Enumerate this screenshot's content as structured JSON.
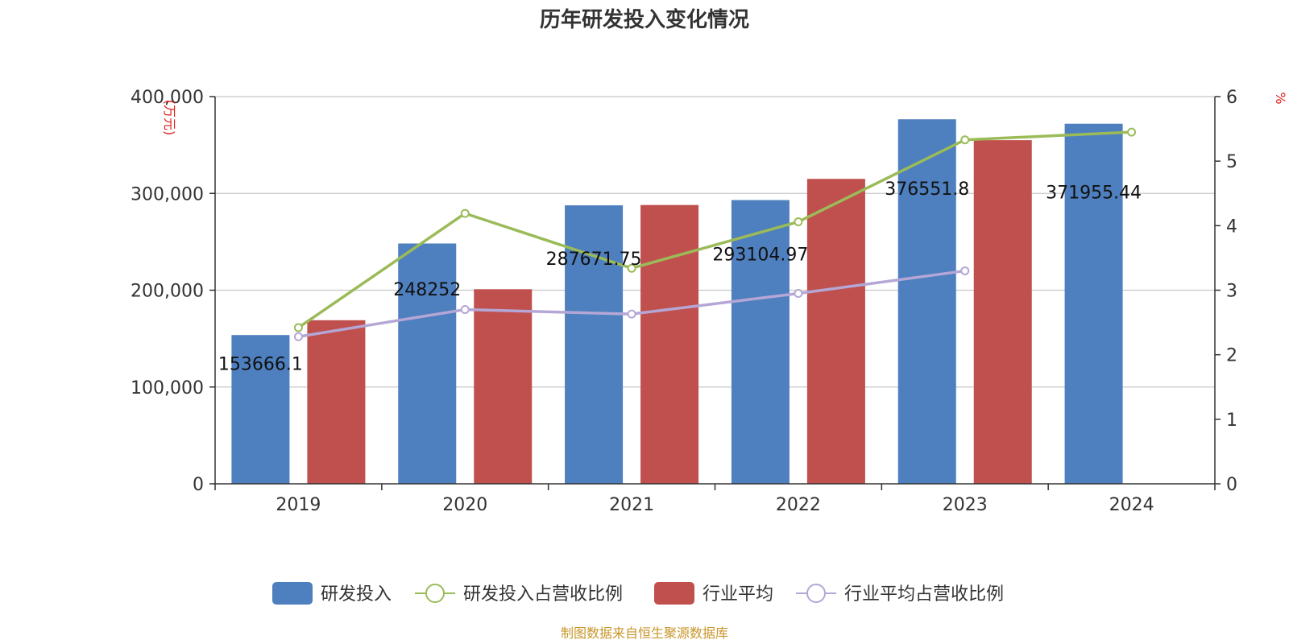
{
  "chart_data": {
    "type": "bar",
    "title": "历年研发投入变化情况",
    "categories": [
      "2019",
      "2020",
      "2021",
      "2022",
      "2023",
      "2024"
    ],
    "left_axis": {
      "unit": "(万元)",
      "ylim": [
        0,
        400000
      ],
      "ticks": [
        "0",
        "100,000",
        "200,000",
        "300,000",
        "400,000"
      ],
      "tick_values": [
        0,
        100000,
        200000,
        300000,
        400000
      ]
    },
    "right_axis": {
      "unit": "%",
      "ylim": [
        0,
        6
      ],
      "ticks": [
        "0",
        "1",
        "2",
        "3",
        "4",
        "5",
        "6"
      ],
      "tick_values": [
        0,
        1,
        2,
        3,
        4,
        5,
        6
      ]
    },
    "series": [
      {
        "name": "研发投入",
        "type": "bar",
        "axis": "left",
        "color": "#4e7fbe",
        "values": [
          153666.1,
          248252,
          287671.75,
          293104.97,
          376551.8,
          371955.44
        ],
        "labels": [
          "153666.1",
          "248252",
          "287671.75",
          "293104.97",
          "376551.8",
          "371955.44"
        ]
      },
      {
        "name": "研发投入占营收比例",
        "type": "line",
        "axis": "right",
        "color": "#9bbb59",
        "values": [
          2.42,
          4.19,
          3.34,
          4.06,
          5.33,
          5.45
        ]
      },
      {
        "name": "行业平均",
        "type": "bar",
        "axis": "left",
        "color": "#c0504d",
        "values": [
          169000,
          201000,
          288000,
          315000,
          355000,
          null
        ]
      },
      {
        "name": "行业平均占营收比例",
        "type": "line",
        "axis": "right",
        "color": "#b4a7d6",
        "values": [
          2.28,
          2.7,
          2.63,
          2.95,
          3.3,
          null
        ]
      }
    ],
    "legend_position": "bottom",
    "grid": true
  },
  "source_note": "制图数据来自恒生聚源数据库"
}
